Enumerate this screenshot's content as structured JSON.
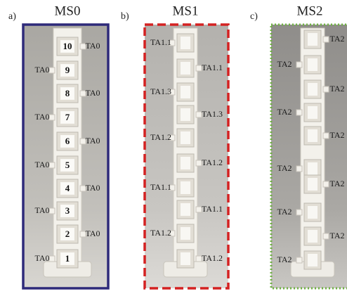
{
  "panels": [
    {
      "letter": "a)",
      "title": "MS0",
      "cells": [
        "10",
        "9",
        "8",
        "7",
        "6",
        "5",
        "4",
        "3",
        "2",
        "1"
      ],
      "labels": [
        "TA0",
        "TA0",
        "TA0",
        "TA0",
        "TA0",
        "TA0",
        "TA0",
        "TA0",
        "TA0",
        "TA0"
      ]
    },
    {
      "letter": "b)",
      "title": "MS1",
      "labels": [
        "TA1.1",
        "TA1.1",
        "TA1.3",
        "TA1.3",
        "TA1.2",
        "TA1.2",
        "TA1.1",
        "TA1.1",
        "TA1.2",
        "TA1.2"
      ]
    },
    {
      "letter": "c)",
      "title": "MS2",
      "labels": [
        "TA2",
        "TA2",
        "TA2",
        "TA2",
        "TA2",
        "TA2",
        "TA2",
        "TA2",
        "TA2",
        "TA2"
      ]
    }
  ]
}
